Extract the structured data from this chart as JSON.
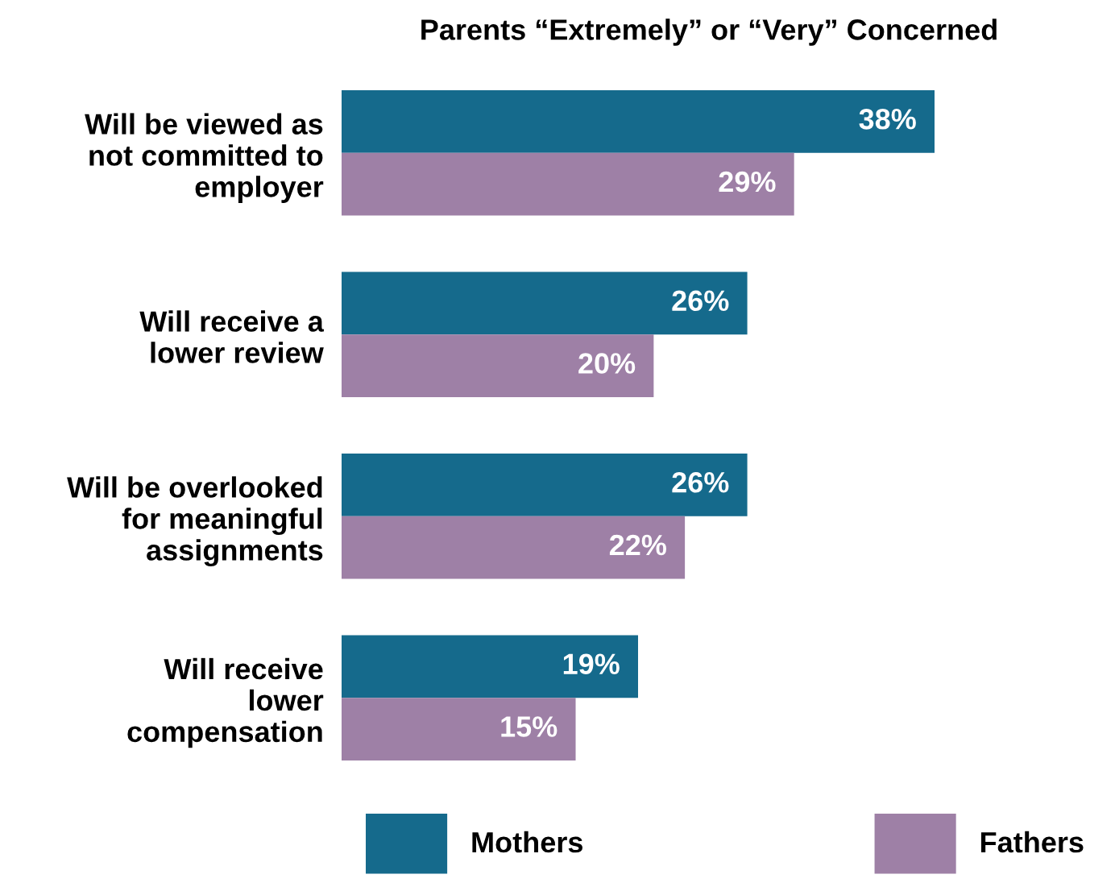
{
  "chart_data": {
    "type": "bar",
    "orientation": "horizontal",
    "title": "Parents “Extremely” or “Very” Concerned",
    "categories": [
      "Will be viewed as\nnot committed to\nemployer",
      "Will receive a\nlower review",
      "Will be overlooked\nfor meaningful\nassignments",
      "Will receive\nlower\ncompensation"
    ],
    "series": [
      {
        "name": "Mothers",
        "color": "#156a8c",
        "values": [
          38,
          26,
          26,
          19
        ],
        "value_labels": [
          "38%",
          "26%",
          "26%",
          "19%"
        ]
      },
      {
        "name": "Fathers",
        "color": "#9e80a6",
        "values": [
          29,
          20,
          22,
          15
        ],
        "value_labels": [
          "29%",
          "20%",
          "22%",
          "15%"
        ]
      }
    ],
    "legend": "bottom",
    "grid": false,
    "tick_labels": "y"
  }
}
